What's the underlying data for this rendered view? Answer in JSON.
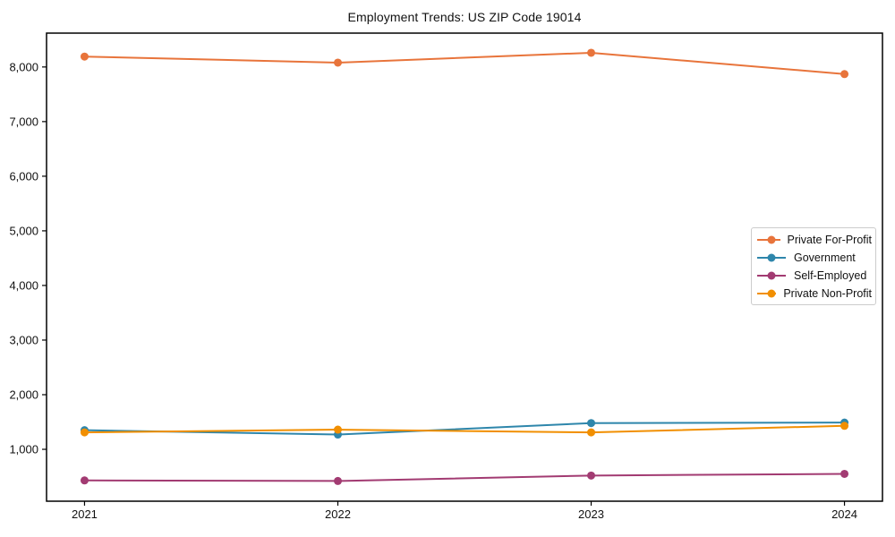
{
  "chart_data": {
    "type": "line",
    "title": "Employment Trends: US ZIP Code 19014",
    "xlabel": "",
    "ylabel": "",
    "x": [
      2021,
      2022,
      2023,
      2024
    ],
    "x_tick_labels": [
      "2021",
      "2022",
      "2023",
      "2024"
    ],
    "y_ticks": [
      1000,
      2000,
      3000,
      4000,
      5000,
      6000,
      7000,
      8000
    ],
    "y_tick_labels": [
      "1,000",
      "2,000",
      "3,000",
      "4,000",
      "5,000",
      "6,000",
      "7,000",
      "8,000"
    ],
    "xlim": [
      2020.85,
      2024.15
    ],
    "ylim": [
      50,
      8620
    ],
    "grid": false,
    "legend_position": "center right",
    "series": [
      {
        "name": "Private For-Profit",
        "color": "#E8743B",
        "values": [
          8190,
          8080,
          8260,
          7870
        ]
      },
      {
        "name": "Government",
        "color": "#2E86AB",
        "values": [
          1350,
          1270,
          1480,
          1490
        ]
      },
      {
        "name": "Self-Employed",
        "color": "#A23B72",
        "values": [
          430,
          420,
          520,
          550
        ]
      },
      {
        "name": "Private Non-Profit",
        "color": "#F18F01",
        "values": [
          1310,
          1360,
          1310,
          1430
        ]
      }
    ]
  }
}
